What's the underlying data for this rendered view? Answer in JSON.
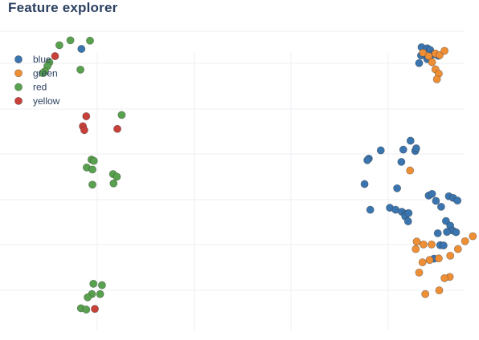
{
  "title": "Feature explorer",
  "colors": {
    "blue": "#3b75af",
    "green": "#ef8f35",
    "red": "#58a14e",
    "yellow": "#c8403a",
    "grid": "#eceff3",
    "title": "#2a3f5f"
  },
  "legend": {
    "placement": "top-left",
    "items": [
      {
        "label": "blue",
        "color": "#3b75af"
      },
      {
        "label": "green",
        "color": "#ef8f35"
      },
      {
        "label": "red",
        "color": "#58a14e"
      },
      {
        "label": "yellow",
        "color": "#c8403a"
      }
    ]
  },
  "chart_data": {
    "type": "scatter",
    "title": "Feature explorer",
    "xlabel": "",
    "ylabel": "",
    "grid": true,
    "xlim": [
      0,
      100
    ],
    "ylim": [
      0,
      100
    ],
    "series": [
      {
        "name": "blue",
        "color": "#3b75af",
        "points": [
          [
            17.0,
            85.2
          ],
          [
            88.0,
            85.7
          ],
          [
            89.2,
            85.4
          ],
          [
            89.8,
            84.9
          ],
          [
            87.9,
            83.2
          ],
          [
            90.3,
            83.5
          ],
          [
            89.2,
            82.1
          ],
          [
            91.5,
            83.1
          ],
          [
            87.5,
            80.9
          ],
          [
            85.7,
            57.4
          ],
          [
            79.5,
            54.5
          ],
          [
            84.2,
            54.7
          ],
          [
            86.7,
            54.3
          ],
          [
            86.9,
            55.1
          ],
          [
            77.0,
            52.0
          ],
          [
            76.7,
            51.5
          ],
          [
            83.8,
            51.0
          ],
          [
            76.1,
            44.3
          ],
          [
            82.9,
            43.0
          ],
          [
            89.5,
            40.8
          ],
          [
            90.2,
            41.3
          ],
          [
            91.0,
            39.2
          ],
          [
            93.7,
            40.6
          ],
          [
            94.6,
            40.1
          ],
          [
            95.5,
            39.3
          ],
          [
            92.1,
            37.4
          ],
          [
            77.3,
            36.5
          ],
          [
            81.4,
            37.1
          ],
          [
            82.6,
            36.5
          ],
          [
            83.9,
            35.9
          ],
          [
            84.7,
            35.3
          ],
          [
            84.6,
            34.5
          ],
          [
            85.3,
            35.5
          ],
          [
            85.2,
            33.0
          ],
          [
            93.1,
            33.1
          ],
          [
            94.0,
            31.7
          ],
          [
            94.5,
            30.2
          ],
          [
            93.3,
            29.8
          ],
          [
            95.2,
            29.7
          ],
          [
            91.4,
            29.4
          ],
          [
            91.9,
            25.8
          ],
          [
            92.6,
            25.7
          ],
          [
            90.6,
            21.7
          ]
        ]
      },
      {
        "name": "green",
        "color": "#ef8f35",
        "points": [
          [
            88.3,
            84.0
          ],
          [
            89.5,
            83.0
          ],
          [
            90.9,
            83.8
          ],
          [
            91.8,
            83.3
          ],
          [
            90.2,
            81.2
          ],
          [
            90.9,
            79.0
          ],
          [
            91.6,
            77.7
          ],
          [
            92.8,
            84.6
          ],
          [
            91.2,
            76.0
          ],
          [
            85.6,
            48.4
          ],
          [
            87.0,
            26.9
          ],
          [
            88.4,
            26.0
          ],
          [
            90.1,
            26.0
          ],
          [
            97.1,
            27.0
          ],
          [
            98.7,
            28.5
          ],
          [
            95.6,
            24.6
          ],
          [
            86.8,
            24.6
          ],
          [
            94.0,
            22.6
          ],
          [
            91.6,
            21.8
          ],
          [
            89.7,
            21.3
          ],
          [
            88.2,
            20.6
          ],
          [
            87.5,
            17.5
          ],
          [
            93.9,
            16.2
          ],
          [
            92.8,
            15.8
          ],
          [
            91.7,
            12.1
          ],
          [
            88.8,
            11.0
          ]
        ]
      },
      {
        "name": "red",
        "color": "#58a14e",
        "points": [
          [
            14.7,
            87.8
          ],
          [
            18.8,
            87.7
          ],
          [
            12.4,
            86.3
          ],
          [
            10.3,
            81.1
          ],
          [
            9.9,
            80.0
          ],
          [
            9.4,
            78.4
          ],
          [
            8.9,
            77.9
          ],
          [
            16.8,
            78.9
          ],
          [
            25.4,
            65.2
          ],
          [
            19.1,
            51.7
          ],
          [
            19.6,
            51.3
          ],
          [
            18.1,
            49.3
          ],
          [
            19.3,
            48.7
          ],
          [
            23.6,
            47.3
          ],
          [
            24.4,
            46.5
          ],
          [
            19.3,
            44.1
          ],
          [
            23.7,
            44.5
          ],
          [
            19.5,
            14.1
          ],
          [
            21.3,
            13.7
          ],
          [
            20.9,
            11.0
          ],
          [
            19.2,
            11.0
          ],
          [
            18.3,
            10.0
          ],
          [
            16.9,
            6.7
          ],
          [
            18.0,
            6.3
          ]
        ]
      },
      {
        "name": "yellow",
        "color": "#c8403a",
        "points": [
          [
            11.5,
            83.0
          ],
          [
            18.0,
            64.8
          ],
          [
            17.3,
            61.8
          ],
          [
            24.5,
            61.0
          ],
          [
            17.6,
            60.6
          ],
          [
            19.8,
            6.5
          ]
        ]
      }
    ]
  }
}
